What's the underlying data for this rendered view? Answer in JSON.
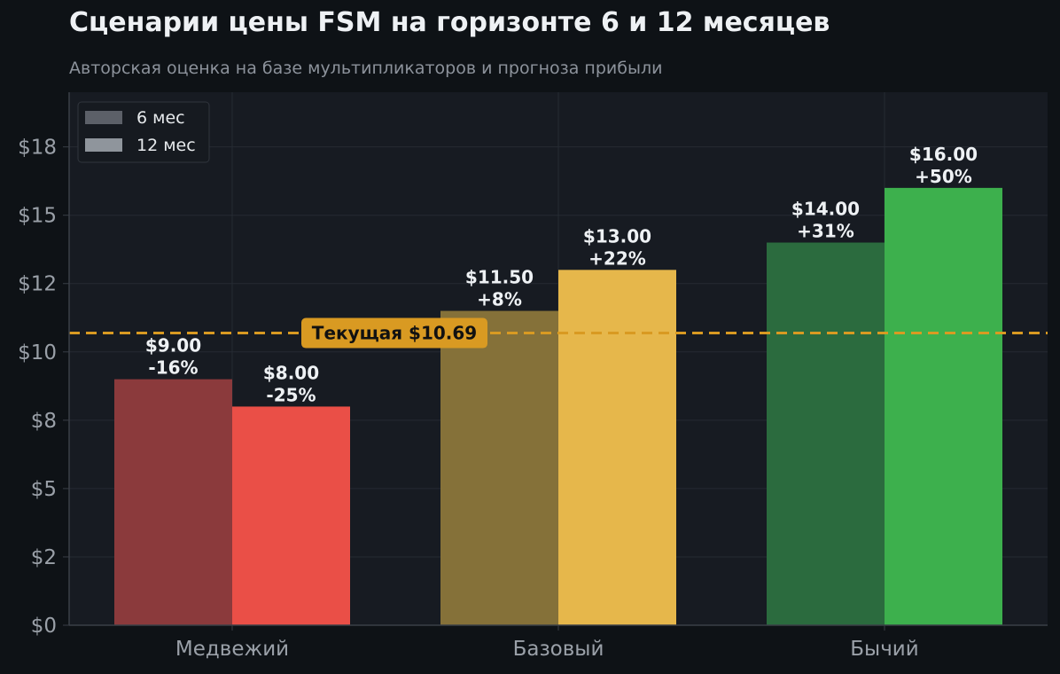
{
  "chart_data": {
    "type": "bar",
    "title": "Сценарии цены FSM на горизонте 6 и 12 месяцев",
    "subtitle": "Авторская оценка на базе мультипликаторов и прогноза прибыли",
    "xlabel": "",
    "ylabel": "",
    "categories": [
      "Медвежий",
      "Базовый",
      "Бычий"
    ],
    "series": [
      {
        "name": "6 мес",
        "values": [
          9.0,
          11.5,
          14.0
        ],
        "value_labels": [
          "$9.00",
          "$11.50",
          "$14.00"
        ],
        "change_labels": [
          "-16%",
          "+8%",
          "+31%"
        ],
        "colors": [
          "#8b3a3c",
          "#857139",
          "#2b6b3e"
        ]
      },
      {
        "name": "12 мес",
        "values": [
          8.0,
          13.0,
          16.0
        ],
        "value_labels": [
          "$8.00",
          "$13.00",
          "$16.00"
        ],
        "change_labels": [
          "-25%",
          "+22%",
          "+50%"
        ],
        "colors": [
          "#ea4f47",
          "#e6b74b",
          "#3db04d"
        ]
      }
    ],
    "yticks": [
      0,
      2.5,
      5,
      7.5,
      10,
      12.5,
      15,
      17.5
    ],
    "ytick_labels": [
      "$0",
      "$2",
      "$5",
      "$8",
      "$10",
      "$12",
      "$15",
      "$18"
    ],
    "ylim": [
      0,
      19.5
    ],
    "grid": true,
    "legend": {
      "position": "top-left",
      "entries": [
        "6 мес",
        "12 мес"
      ],
      "colors": [
        "#5c6068",
        "#8f959c"
      ]
    },
    "reference_line": {
      "value": 10.69,
      "label": "Текущая $10.69",
      "color": "#d99a22"
    },
    "colors": {
      "background": "#0e1216",
      "plot_background": "#171b22",
      "grid": "#262b33",
      "axis": "#3a3f47"
    }
  }
}
